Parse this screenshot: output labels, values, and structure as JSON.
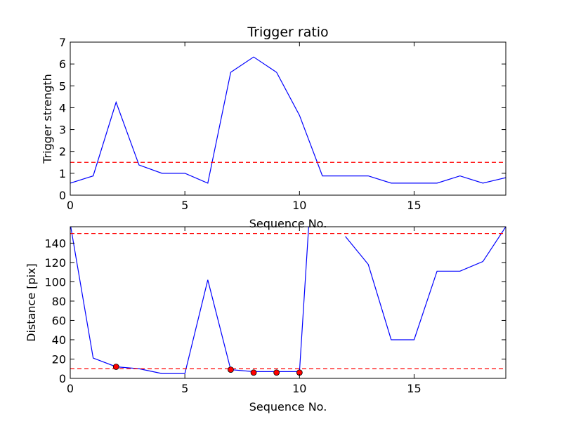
{
  "chart_data": [
    {
      "type": "line",
      "title": "Trigger ratio",
      "xlabel": "Sequence No.",
      "ylabel": "Trigger strength",
      "xlim": [
        0,
        19
      ],
      "ylim": [
        0,
        7
      ],
      "xticks": [
        0,
        5,
        10,
        15
      ],
      "yticks": [
        0,
        1,
        2,
        3,
        4,
        5,
        6,
        7
      ],
      "grid": false,
      "series": [
        {
          "x": [
            0,
            1,
            2,
            3,
            4,
            5,
            6,
            7,
            8,
            9,
            10,
            11,
            12,
            13,
            14,
            15,
            16,
            17,
            18,
            19
          ],
          "values": [
            0.55,
            0.88,
            4.25,
            1.38,
            1.0,
            1.0,
            0.55,
            5.62,
            6.32,
            5.62,
            3.65,
            0.88,
            0.88,
            0.88,
            0.55,
            0.55,
            0.55,
            0.88,
            0.55,
            0.8
          ],
          "color": "#0000ff"
        }
      ],
      "hlines": [
        {
          "y": 1.5,
          "color": "#ff0000",
          "style": "dashed"
        }
      ]
    },
    {
      "type": "line",
      "title": "",
      "xlabel": "Sequence No.",
      "ylabel": "Distance [pix]",
      "xlim": [
        0,
        19
      ],
      "ylim": [
        0,
        157
      ],
      "xticks": [
        0,
        5,
        10,
        15
      ],
      "yticks": [
        0,
        20,
        40,
        60,
        80,
        100,
        120,
        140
      ],
      "grid": false,
      "series": [
        {
          "x": [
            0,
            1,
            2,
            3,
            4,
            5,
            6,
            7,
            8,
            9,
            10,
            10.4,
            11,
            12,
            13,
            14,
            15,
            16,
            17,
            18,
            19
          ],
          "values": [
            160,
            21,
            12,
            10,
            5,
            5,
            102,
            9,
            7,
            7,
            7,
            157,
            null,
            147,
            118,
            40,
            40,
            111,
            111,
            121,
            157
          ],
          "color": "#0000ff"
        }
      ],
      "markers": {
        "x": [
          2,
          7,
          8,
          9,
          10
        ],
        "values": [
          12,
          9,
          6,
          6,
          6
        ],
        "color": "#ff0000"
      },
      "hlines": [
        {
          "y": 150,
          "color": "#ff0000",
          "style": "dashed"
        },
        {
          "y": 10,
          "color": "#ff0000",
          "style": "dashed"
        }
      ]
    }
  ]
}
